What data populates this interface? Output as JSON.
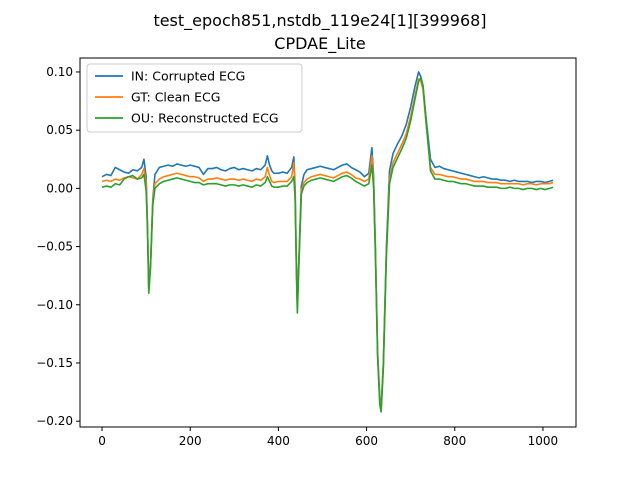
{
  "chart_data": {
    "type": "line",
    "title": "test_epoch851,nstdb_119e24[1][399968]",
    "subtitle": "CPDAE_Lite",
    "xlabel": "",
    "ylabel": "",
    "xlim": [
      -50,
      1075
    ],
    "ylim": [
      -0.205,
      0.112
    ],
    "grid": false,
    "legend_position": "top-left",
    "x_ticks": [
      0,
      200,
      400,
      600,
      800,
      1000
    ],
    "x_tick_labels": [
      "0",
      "200",
      "400",
      "600",
      "800",
      "1000"
    ],
    "y_ticks": [
      0.1,
      0.05,
      0.0,
      -0.05,
      -0.1,
      -0.15,
      -0.2
    ],
    "y_tick_labels": [
      "0.10",
      "0.05",
      "0.00",
      "−0.05",
      "−0.10",
      "−0.15",
      "−0.20"
    ],
    "series": [
      {
        "name": "IN: Corrupted ECG",
        "color": "#1f77b4",
        "x": [
          0,
          10,
          20,
          30,
          40,
          50,
          60,
          70,
          80,
          90,
          95,
          100,
          103,
          106,
          110,
          115,
          120,
          130,
          140,
          150,
          160,
          170,
          180,
          190,
          200,
          210,
          220,
          230,
          240,
          250,
          260,
          270,
          280,
          290,
          300,
          310,
          320,
          330,
          340,
          350,
          360,
          370,
          375,
          380,
          385,
          390,
          400,
          410,
          420,
          430,
          435,
          438,
          441,
          443,
          447,
          452,
          458,
          465,
          475,
          485,
          495,
          505,
          515,
          525,
          535,
          545,
          555,
          565,
          575,
          585,
          595,
          605,
          612,
          616,
          620,
          625,
          630,
          633,
          638,
          645,
          652,
          660,
          670,
          680,
          690,
          700,
          710,
          718,
          723,
          728,
          735,
          745,
          755,
          765,
          775,
          785,
          795,
          805,
          815,
          825,
          835,
          845,
          855,
          865,
          875,
          885,
          895,
          905,
          915,
          925,
          935,
          945,
          955,
          965,
          975,
          985,
          995,
          1005,
          1015,
          1023
        ],
        "y": [
          0.01,
          0.012,
          0.011,
          0.018,
          0.016,
          0.014,
          0.013,
          0.016,
          0.015,
          0.018,
          0.025,
          0.01,
          -0.03,
          -0.085,
          -0.065,
          -0.01,
          0.012,
          0.018,
          0.019,
          0.02,
          0.019,
          0.021,
          0.02,
          0.019,
          0.02,
          0.019,
          0.018,
          0.012,
          0.017,
          0.017,
          0.018,
          0.016,
          0.015,
          0.017,
          0.018,
          0.016,
          0.017,
          0.016,
          0.015,
          0.017,
          0.016,
          0.02,
          0.028,
          0.02,
          0.015,
          0.013,
          0.013,
          0.014,
          0.013,
          0.018,
          0.027,
          0.0,
          -0.07,
          -0.1,
          -0.055,
          0.002,
          0.012,
          0.016,
          0.017,
          0.018,
          0.019,
          0.018,
          0.017,
          0.016,
          0.018,
          0.02,
          0.021,
          0.018,
          0.016,
          0.014,
          0.01,
          0.013,
          0.035,
          0.01,
          -0.05,
          -0.14,
          -0.18,
          -0.188,
          -0.15,
          -0.05,
          0.015,
          0.03,
          0.038,
          0.045,
          0.055,
          0.07,
          0.088,
          0.1,
          0.096,
          0.088,
          0.06,
          0.025,
          0.018,
          0.019,
          0.017,
          0.016,
          0.015,
          0.014,
          0.013,
          0.012,
          0.011,
          0.01,
          0.009,
          0.01,
          0.009,
          0.008,
          0.008,
          0.007,
          0.007,
          0.006,
          0.007,
          0.006,
          0.006,
          0.006,
          0.005,
          0.006,
          0.006,
          0.005,
          0.006,
          0.007
        ]
      },
      {
        "name": "GT: Clean ECG",
        "color": "#ff7f0e",
        "x": [
          0,
          10,
          20,
          30,
          40,
          50,
          60,
          70,
          80,
          90,
          95,
          100,
          103,
          106,
          110,
          115,
          120,
          130,
          140,
          150,
          160,
          170,
          180,
          190,
          200,
          210,
          220,
          230,
          240,
          250,
          260,
          270,
          280,
          290,
          300,
          310,
          320,
          330,
          340,
          350,
          360,
          370,
          375,
          380,
          385,
          390,
          400,
          410,
          420,
          430,
          435,
          438,
          441,
          443,
          447,
          452,
          458,
          465,
          475,
          485,
          495,
          505,
          515,
          525,
          535,
          545,
          555,
          565,
          575,
          585,
          595,
          605,
          612,
          616,
          620,
          625,
          630,
          633,
          638,
          645,
          652,
          660,
          670,
          680,
          690,
          700,
          710,
          718,
          723,
          728,
          735,
          745,
          755,
          765,
          775,
          785,
          795,
          805,
          815,
          825,
          835,
          845,
          855,
          865,
          875,
          885,
          895,
          905,
          915,
          925,
          935,
          945,
          955,
          965,
          975,
          985,
          995,
          1005,
          1015,
          1023
        ],
        "y": [
          0.006,
          0.007,
          0.006,
          0.008,
          0.007,
          0.009,
          0.01,
          0.009,
          0.008,
          0.012,
          0.017,
          0.005,
          -0.032,
          -0.087,
          -0.066,
          -0.012,
          0.004,
          0.008,
          0.01,
          0.011,
          0.012,
          0.013,
          0.012,
          0.011,
          0.01,
          0.01,
          0.009,
          0.006,
          0.008,
          0.008,
          0.009,
          0.008,
          0.007,
          0.008,
          0.008,
          0.007,
          0.008,
          0.007,
          0.006,
          0.008,
          0.007,
          0.01,
          0.018,
          0.011,
          0.006,
          0.005,
          0.006,
          0.006,
          0.006,
          0.01,
          0.022,
          -0.005,
          -0.073,
          -0.103,
          -0.057,
          -0.002,
          0.005,
          0.008,
          0.01,
          0.011,
          0.012,
          0.011,
          0.01,
          0.009,
          0.011,
          0.013,
          0.014,
          0.012,
          0.009,
          0.008,
          0.006,
          0.008,
          0.028,
          0.005,
          -0.053,
          -0.142,
          -0.183,
          -0.19,
          -0.152,
          -0.055,
          0.008,
          0.022,
          0.03,
          0.038,
          0.047,
          0.062,
          0.08,
          0.094,
          0.092,
          0.085,
          0.055,
          0.018,
          0.012,
          0.012,
          0.011,
          0.01,
          0.01,
          0.009,
          0.008,
          0.008,
          0.007,
          0.006,
          0.006,
          0.006,
          0.005,
          0.005,
          0.005,
          0.004,
          0.004,
          0.004,
          0.004,
          0.004,
          0.003,
          0.004,
          0.004,
          0.003,
          0.004,
          0.004,
          0.004,
          0.005
        ]
      },
      {
        "name": "OU: Reconstructed ECG",
        "color": "#2ca02c",
        "x": [
          0,
          10,
          20,
          30,
          40,
          50,
          60,
          70,
          80,
          90,
          95,
          100,
          103,
          106,
          110,
          115,
          120,
          130,
          140,
          150,
          160,
          170,
          180,
          190,
          200,
          210,
          220,
          230,
          240,
          250,
          260,
          270,
          280,
          290,
          300,
          310,
          320,
          330,
          340,
          350,
          360,
          370,
          375,
          380,
          385,
          390,
          400,
          410,
          420,
          430,
          435,
          438,
          441,
          443,
          447,
          452,
          458,
          465,
          475,
          485,
          495,
          505,
          515,
          525,
          535,
          545,
          555,
          565,
          575,
          585,
          595,
          605,
          612,
          616,
          620,
          625,
          630,
          633,
          638,
          645,
          652,
          660,
          670,
          680,
          690,
          700,
          710,
          718,
          723,
          728,
          735,
          745,
          755,
          765,
          775,
          785,
          795,
          805,
          815,
          825,
          835,
          845,
          855,
          865,
          875,
          885,
          895,
          905,
          915,
          925,
          935,
          945,
          955,
          965,
          975,
          985,
          995,
          1005,
          1015,
          1023
        ],
        "y": [
          0.001,
          0.002,
          0.001,
          0.004,
          0.003,
          0.008,
          0.01,
          0.011,
          0.008,
          0.009,
          0.012,
          -0.002,
          -0.035,
          -0.09,
          -0.068,
          -0.015,
          0.0,
          0.004,
          0.006,
          0.007,
          0.008,
          0.009,
          0.008,
          0.007,
          0.006,
          0.005,
          0.005,
          0.003,
          0.004,
          0.004,
          0.004,
          0.003,
          0.002,
          0.003,
          0.003,
          0.002,
          0.003,
          0.002,
          0.001,
          0.003,
          0.002,
          0.005,
          0.01,
          0.006,
          0.002,
          0.001,
          0.001,
          0.002,
          0.002,
          0.006,
          0.01,
          -0.01,
          -0.075,
          -0.107,
          -0.06,
          -0.005,
          0.002,
          0.005,
          0.007,
          0.008,
          0.009,
          0.008,
          0.007,
          0.006,
          0.008,
          0.01,
          0.011,
          0.009,
          0.006,
          0.004,
          0.002,
          0.004,
          0.02,
          0.0,
          -0.058,
          -0.145,
          -0.186,
          -0.192,
          -0.155,
          -0.058,
          0.004,
          0.018,
          0.026,
          0.034,
          0.043,
          0.058,
          0.077,
          0.092,
          0.095,
          0.088,
          0.058,
          0.015,
          0.008,
          0.008,
          0.007,
          0.006,
          0.006,
          0.005,
          0.004,
          0.004,
          0.003,
          0.002,
          0.002,
          0.002,
          0.001,
          0.001,
          0.001,
          0.0,
          0.0,
          0.001,
          0.0,
          0.0,
          -0.001,
          0.0,
          0.0,
          -0.001,
          0.0,
          -0.001,
          0.0,
          0.001
        ]
      }
    ]
  }
}
